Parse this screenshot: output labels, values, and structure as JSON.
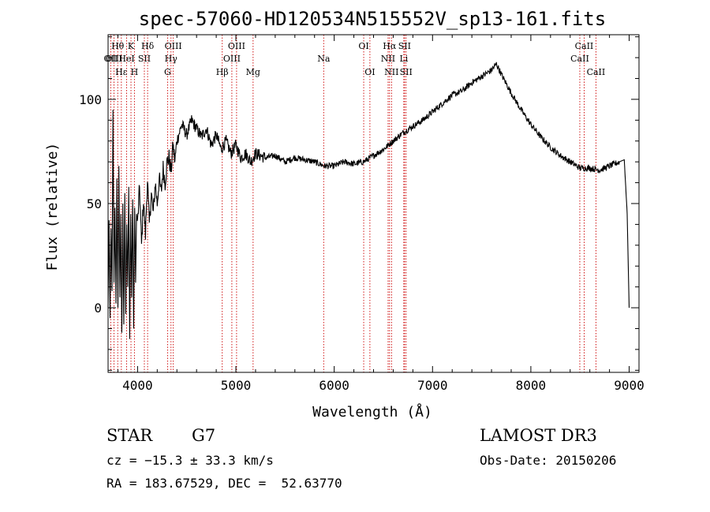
{
  "chart_data": {
    "type": "line",
    "title": "spec-57060-HD120534N515552V_sp13-161.fits",
    "xlabel": "Wavelength (Å)",
    "ylabel": "Flux (relative)",
    "xlim": [
      3700,
      9100
    ],
    "ylim": [
      -31,
      131
    ],
    "xticks": [
      {
        "value": 4000,
        "label": "4000"
      },
      {
        "value": 5000,
        "label": "5000"
      },
      {
        "value": 6000,
        "label": "6000"
      },
      {
        "value": 7000,
        "label": "7000"
      },
      {
        "value": 8000,
        "label": "8000"
      },
      {
        "value": 9000,
        "label": "9000"
      }
    ],
    "yticks": [
      {
        "value": 0,
        "label": "0"
      },
      {
        "value": 50,
        "label": "50"
      },
      {
        "value": 100,
        "label": "100"
      }
    ],
    "series": [
      {
        "name": "spectrum",
        "x": [
          3700,
          3710,
          3720,
          3730,
          3740,
          3750,
          3760,
          3770,
          3780,
          3790,
          3800,
          3810,
          3820,
          3830,
          3840,
          3850,
          3860,
          3870,
          3880,
          3890,
          3900,
          3910,
          3920,
          3930,
          3940,
          3950,
          3960,
          3970,
          3980,
          3990,
          4000,
          4020,
          4040,
          4060,
          4080,
          4100,
          4120,
          4140,
          4160,
          4180,
          4200,
          4220,
          4240,
          4260,
          4280,
          4300,
          4320,
          4340,
          4360,
          4380,
          4400,
          4450,
          4500,
          4550,
          4600,
          4650,
          4700,
          4750,
          4800,
          4850,
          4900,
          4950,
          5000,
          5050,
          5100,
          5150,
          5200,
          5300,
          5400,
          5500,
          5600,
          5700,
          5800,
          5900,
          6000,
          6100,
          6200,
          6300,
          6400,
          6500,
          6600,
          6700,
          6800,
          6900,
          7000,
          7100,
          7200,
          7300,
          7400,
          7500,
          7600,
          7650,
          7700,
          7800,
          7900,
          8000,
          8100,
          8200,
          8300,
          8400,
          8500,
          8600,
          8700,
          8800,
          8900,
          8950,
          8980,
          9000
        ],
        "y": [
          0,
          42,
          -5,
          38,
          8,
          95,
          12,
          48,
          2,
          62,
          0,
          68,
          5,
          45,
          -12,
          50,
          -8,
          55,
          -3,
          40,
          10,
          58,
          -15,
          45,
          5,
          52,
          -10,
          48,
          12,
          45,
          40,
          58,
          30,
          52,
          35,
          62,
          40,
          55,
          45,
          60,
          50,
          62,
          55,
          67,
          60,
          70,
          72,
          65,
          78,
          70,
          80,
          88,
          83,
          90,
          86,
          82,
          86,
          78,
          83,
          76,
          80,
          74,
          78,
          72,
          74,
          70,
          74,
          72,
          73,
          70,
          72,
          71,
          70,
          68,
          68,
          70,
          69,
          70,
          73,
          76,
          80,
          84,
          87,
          90,
          94,
          98,
          102,
          104,
          108,
          111,
          114,
          117,
          112,
          103,
          95,
          88,
          82,
          77,
          73,
          70,
          67,
          67,
          66,
          68,
          70,
          71,
          45,
          0
        ]
      }
    ],
    "lines": [
      {
        "name": "OII",
        "wl": 3727,
        "row": 2
      },
      {
        "name": "Hθ",
        "wl": 3798,
        "row": 1
      },
      {
        "name": "OIII",
        "wl": 3760,
        "row": 2
      },
      {
        "name": "Hε",
        "wl": 3835,
        "row": 3
      },
      {
        "name": "HeI",
        "wl": 3889,
        "row": 2
      },
      {
        "name": "K",
        "wl": 3933,
        "row": 1
      },
      {
        "name": "H",
        "wl": 3968,
        "row": 3
      },
      {
        "name": "SII",
        "wl": 4069,
        "row": 2
      },
      {
        "name": "Hδ",
        "wl": 4102,
        "row": 1
      },
      {
        "name": "G",
        "wl": 4305,
        "row": 3
      },
      {
        "name": "Hγ",
        "wl": 4340,
        "row": 2
      },
      {
        "name": "OIII",
        "wl": 4363,
        "row": 1
      },
      {
        "name": "Hβ",
        "wl": 4861,
        "row": 3
      },
      {
        "name": "OIII",
        "wl": 4959,
        "row": 2
      },
      {
        "name": "OIII",
        "wl": 5007,
        "row": 1
      },
      {
        "name": "Mg",
        "wl": 5175,
        "row": 3
      },
      {
        "name": "Na",
        "wl": 5893,
        "row": 2
      },
      {
        "name": "OI",
        "wl": 6300,
        "row": 1
      },
      {
        "name": "OI",
        "wl": 6363,
        "row": 3
      },
      {
        "name": "NII",
        "wl": 6548,
        "row": 2
      },
      {
        "name": "Hα",
        "wl": 6563,
        "row": 1
      },
      {
        "name": "NII",
        "wl": 6583,
        "row": 3
      },
      {
        "name": "Li",
        "wl": 6708,
        "row": 2
      },
      {
        "name": "SII",
        "wl": 6716,
        "row": 1
      },
      {
        "name": "SII",
        "wl": 6731,
        "row": 3
      },
      {
        "name": "CaII",
        "wl": 8498,
        "row": 2
      },
      {
        "name": "CaII",
        "wl": 8542,
        "row": 1
      },
      {
        "name": "CaII",
        "wl": 8662,
        "row": 3
      }
    ]
  },
  "info": {
    "object_class": "STAR",
    "subclass": "G7",
    "survey": "LAMOST DR3",
    "redshift": "cz = −15.3 ± 33.3 km/s",
    "obs_date": "Obs-Date: 20150206",
    "coords": "RA = 183.67529, DEC =  52.63770"
  },
  "colors": {
    "axis": "#000000",
    "spectrum": "#000000",
    "line_marker": "#cc0000"
  }
}
